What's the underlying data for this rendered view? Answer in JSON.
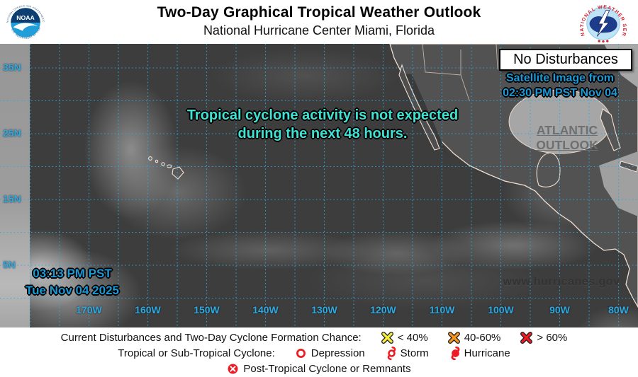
{
  "header": {
    "title": "Two-Day Graphical Tropical Weather Outlook",
    "subtitle": "National Hurricane Center  Miami, Florida",
    "noaa_logo_text": "NOAA",
    "noaa_ring_top": "NATIONAL OCEANIC AND ATMOSPHERIC ADMINISTRATION",
    "noaa_ring_bottom": "U.S. DEPARTMENT OF COMMERCE",
    "nws_ring": "NATIONAL WEATHER SERVICE"
  },
  "map": {
    "status_box": "No Disturbances",
    "satellite_caption_line1": "Satellite Image from",
    "satellite_caption_line2": "02:30 PM PST Nov 04",
    "message_line1": "Tropical cyclone activity is not expected",
    "message_line2": "during the next 48 hours.",
    "atlantic_link_line1": "ATLANTIC",
    "atlantic_link_line2": "OUTLOOK",
    "timestamp_line1": "03:13 PM PST",
    "timestamp_line2": "Tue Nov 04 2025",
    "watermark": "www.hurricanes.gov",
    "lat_labels": [
      "35N",
      "25N",
      "15N",
      "5N"
    ],
    "lon_labels": [
      "170W",
      "160W",
      "150W",
      "140W",
      "130W",
      "120W",
      "110W",
      "100W",
      "90W",
      "80W"
    ],
    "colors": {
      "label_blue": "#2FA9E1",
      "caption_blue": "#1A9AD7",
      "message_teal": "#3EE3D3",
      "grid": "#2FA9E1"
    }
  },
  "legend": {
    "line1_label": "Current Disturbances and Two-Day Cyclone Formation Chance:",
    "chance_items": [
      {
        "icon": "x-yellow",
        "label": "< 40%",
        "color": "#F7EC3E"
      },
      {
        "icon": "x-orange",
        "label": "40-60%",
        "color": "#F7941D"
      },
      {
        "icon": "x-red",
        "label": "> 60%",
        "color": "#ED1C24"
      }
    ],
    "line2_label": "Tropical or Sub-Tropical Cyclone:",
    "cyclone_items": [
      {
        "icon": "depression-circle",
        "label": "Depression"
      },
      {
        "icon": "storm-spiral",
        "label": "Storm"
      },
      {
        "icon": "hurricane-filled",
        "label": "Hurricane"
      }
    ],
    "line3_item": {
      "icon": "post-tropical-circle-x",
      "label": "Post-Tropical Cyclone or Remnants"
    },
    "symbol_red": "#ED1C24"
  }
}
